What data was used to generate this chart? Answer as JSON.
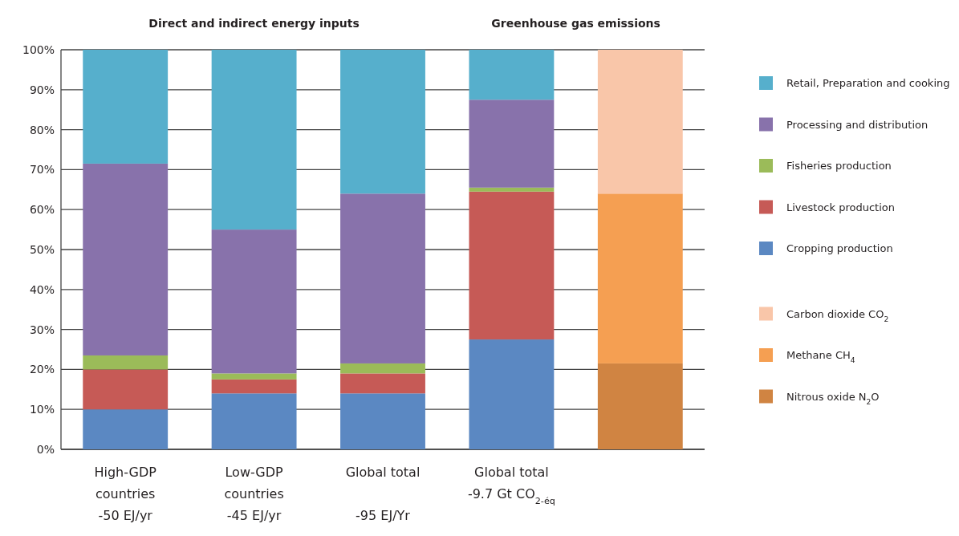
{
  "chart_data": {
    "type": "bar",
    "stacked": true,
    "categories": [
      "High-GDP\ncountries\n-50 EJ/yr",
      "Low-GDP\ncountries\n-45 EJ/yr",
      "Global total\n\n-95 EJ/Yr",
      "Global total\n-9.7 Gt CO$_{2-éq}$",
      null
    ],
    "series": [
      {
        "name": "Cropping production",
        "color": "#5b88c2",
        "values": [
          10,
          14,
          14,
          27.5,
          null
        ]
      },
      {
        "name": "Livestock production",
        "color": "#c65a56",
        "values": [
          10,
          3.5,
          5,
          37,
          null
        ]
      },
      {
        "name": "Fisheries production",
        "color": "#9bbb59",
        "values": [
          3.5,
          1.5,
          2.5,
          1,
          null
        ]
      },
      {
        "name": "Processing and distribution",
        "color": "#8872ab",
        "values": [
          48,
          36,
          42.5,
          22,
          null
        ]
      },
      {
        "name": "Retail, Preparation and cooking",
        "color": "#56afcc",
        "values": [
          28.5,
          45,
          36,
          12.5,
          null
        ]
      },
      {
        "name": "Nitrous oxide N$_{2}$O",
        "color": "#d08442",
        "values": [
          null,
          null,
          null,
          null,
          21.5
        ]
      },
      {
        "name": "Methane CH$_{4}$",
        "color": "#f59f52",
        "values": [
          null,
          null,
          null,
          null,
          42.5
        ]
      },
      {
        "name": "Carbon dioxide CO$_{2}$",
        "color": "#f9c6a9",
        "values": [
          null,
          null,
          null,
          null,
          36
        ]
      }
    ],
    "ylim": [
      0,
      100
    ],
    "yticks": [
      {
        "value": 0,
        "label": "0%"
      },
      {
        "value": 10,
        "label": "10%"
      },
      {
        "value": 20,
        "label": "20%"
      },
      {
        "value": 30,
        "label": "30%"
      },
      {
        "value": 40,
        "label": "40%"
      },
      {
        "value": 50,
        "label": "50%"
      },
      {
        "value": 60,
        "label": "60%"
      },
      {
        "value": 70,
        "label": "70%"
      },
      {
        "value": 80,
        "label": "80%"
      },
      {
        "value": 90,
        "label": "90%"
      },
      {
        "value": 100,
        "label": "100%"
      }
    ],
    "grid": "y",
    "legend": "right",
    "annotations": [
      "Direct and indirect energy inputs",
      "Greenhouse gas emissions"
    ]
  }
}
